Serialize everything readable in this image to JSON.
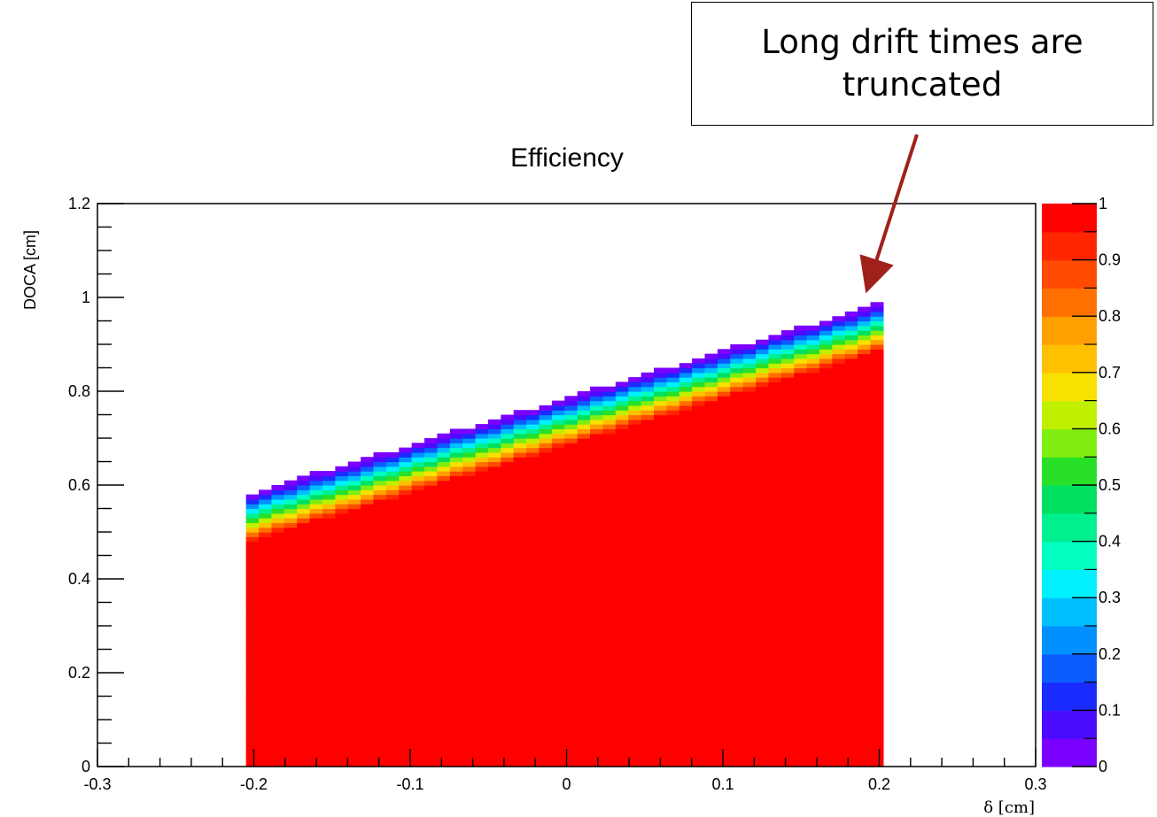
{
  "annotation": {
    "text": "Long drift times are\ntruncated",
    "arrow_color": "#A0211A"
  },
  "chart_data": {
    "type": "heatmap",
    "title": "Efficiency",
    "xlabel": "δ [cm]",
    "ylabel": "DOCA [cm]",
    "xlim": [
      -0.3,
      0.3
    ],
    "ylim": [
      0,
      1.2
    ],
    "zlim": [
      0,
      1
    ],
    "x_ticks": [
      "-0.3",
      "-0.2",
      "-0.1",
      "0",
      "0.1",
      "0.2",
      "0.3"
    ],
    "y_ticks": [
      "0",
      "0.2",
      "0.4",
      "0.6",
      "0.8",
      "1",
      "1.2"
    ],
    "z_ticks": [
      "0",
      "0.1",
      "0.2",
      "0.3",
      "0.4",
      "0.5",
      "0.6",
      "0.7",
      "0.8",
      "0.9",
      "1"
    ],
    "data_region": {
      "x_range": [
        -0.205,
        0.2025
      ],
      "doca_max_at_left": 0.575,
      "doca_max_at_right": 0.985,
      "efficiency_bulk": 1.0,
      "efficiency_upper_edge": 0.0
    },
    "palette": [
      "#7A00FF",
      "#4B0BFF",
      "#1A2BFF",
      "#0C5BFF",
      "#0090FF",
      "#00BFFF",
      "#00F0FF",
      "#00FFC0",
      "#00F090",
      "#00E060",
      "#28E028",
      "#80EE10",
      "#C0F000",
      "#F8E000",
      "#FFC000",
      "#FFA000",
      "#FF7000",
      "#FF4A00",
      "#FF2600",
      "#FF0000"
    ],
    "grid": false,
    "legend": "colorbar-right"
  }
}
